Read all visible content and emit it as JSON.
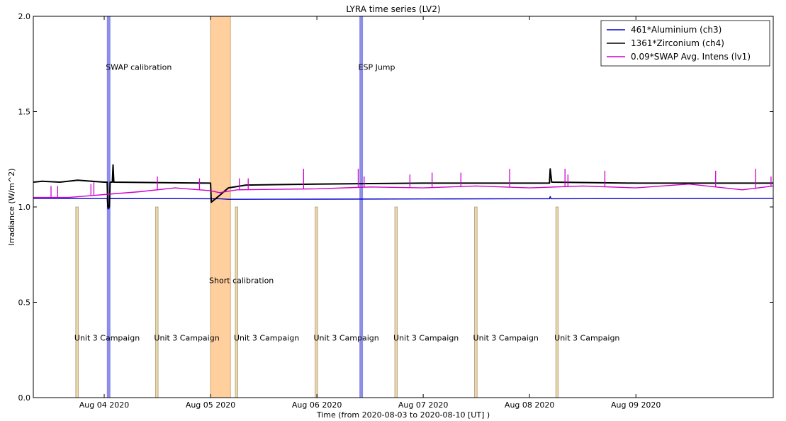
{
  "chart_data": {
    "type": "line",
    "title": "LYRA time series (LV2)",
    "xlabel": "Time (from 2020-08-03 to 2020-08-10 [UT] )",
    "ylabel": "Irradiance (W/m^2)",
    "xlim": [
      "2020-08-03T08:00",
      "2020-08-10T07:00"
    ],
    "ylim": [
      0.0,
      2.0
    ],
    "grid": false,
    "legend_position": "top-right",
    "x_ticks": [
      {
        "value": "2020-08-04T00:00",
        "label": "Aug 04 2020"
      },
      {
        "value": "2020-08-05T00:00",
        "label": "Aug 05 2020"
      },
      {
        "value": "2020-08-06T00:00",
        "label": "Aug 06 2020"
      },
      {
        "value": "2020-08-07T00:00",
        "label": "Aug 07 2020"
      },
      {
        "value": "2020-08-08T00:00",
        "label": "Aug 08 2020"
      },
      {
        "value": "2020-08-09T00:00",
        "label": "Aug 09 2020"
      }
    ],
    "y_ticks": [
      {
        "value": 0.0,
        "label": "0.0"
      },
      {
        "value": 0.5,
        "label": "0.5"
      },
      {
        "value": 1.0,
        "label": "1.0"
      },
      {
        "value": 1.5,
        "label": "1.5"
      },
      {
        "value": 2.0,
        "label": "2.0"
      }
    ],
    "series": [
      {
        "name": "461*Aluminium (ch3)",
        "color": "#0000cc",
        "points": [
          [
            "2020-08-03T08:00",
            1.045
          ],
          [
            "2020-08-04T00:00",
            1.044
          ],
          [
            "2020-08-04T00:40",
            1.044
          ],
          [
            "2020-08-04T00:50",
            0.99
          ],
          [
            "2020-08-04T01:05",
            0.99
          ],
          [
            "2020-08-04T01:10",
            1.044
          ],
          [
            "2020-08-05T00:00",
            1.043
          ],
          [
            "2020-08-05T02:00",
            1.043
          ],
          [
            "2020-08-05T04:00",
            1.04
          ],
          [
            "2020-08-06T00:00",
            1.041
          ],
          [
            "2020-08-07T00:00",
            1.042
          ],
          [
            "2020-08-08T00:00",
            1.043
          ],
          [
            "2020-08-08T04:30",
            1.043
          ],
          [
            "2020-08-08T04:40",
            1.055
          ],
          [
            "2020-08-08T04:50",
            1.043
          ],
          [
            "2020-08-09T00:00",
            1.044
          ],
          [
            "2020-08-10T07:00",
            1.045
          ]
        ]
      },
      {
        "name": "1361*Zirconium (ch4)",
        "color": "#000000",
        "points": [
          [
            "2020-08-03T08:00",
            1.13
          ],
          [
            "2020-08-03T10:00",
            1.135
          ],
          [
            "2020-08-03T14:00",
            1.13
          ],
          [
            "2020-08-03T18:00",
            1.14
          ],
          [
            "2020-08-04T00:00",
            1.13
          ],
          [
            "2020-08-04T00:40",
            1.13
          ],
          [
            "2020-08-04T00:50",
            1.0
          ],
          [
            "2020-08-04T01:10",
            1.0
          ],
          [
            "2020-08-04T01:20",
            1.13
          ],
          [
            "2020-08-04T01:50",
            1.13
          ],
          [
            "2020-08-04T02:00",
            1.22
          ],
          [
            "2020-08-04T02:10",
            1.13
          ],
          [
            "2020-08-05T00:00",
            1.125
          ],
          [
            "2020-08-05T00:10",
            1.025
          ],
          [
            "2020-08-05T02:00",
            1.06
          ],
          [
            "2020-08-05T04:00",
            1.1
          ],
          [
            "2020-08-05T08:00",
            1.115
          ],
          [
            "2020-08-06T00:00",
            1.12
          ],
          [
            "2020-08-07T00:00",
            1.125
          ],
          [
            "2020-08-08T00:00",
            1.125
          ],
          [
            "2020-08-08T04:30",
            1.125
          ],
          [
            "2020-08-08T04:40",
            1.2
          ],
          [
            "2020-08-08T05:00",
            1.13
          ],
          [
            "2020-08-09T00:00",
            1.125
          ],
          [
            "2020-08-10T07:00",
            1.125
          ]
        ]
      },
      {
        "name": "0.09*SWAP Avg. Intens (lv1)",
        "color": "#cc00cc",
        "points": [
          [
            "2020-08-03T08:00",
            1.05
          ],
          [
            "2020-08-03T16:00",
            1.05
          ],
          [
            "2020-08-04T00:00",
            1.065
          ],
          [
            "2020-08-04T08:00",
            1.08
          ],
          [
            "2020-08-04T16:00",
            1.1
          ],
          [
            "2020-08-05T00:00",
            1.085
          ],
          [
            "2020-08-05T02:00",
            1.075
          ],
          [
            "2020-08-05T06:00",
            1.09
          ],
          [
            "2020-08-06T00:00",
            1.095
          ],
          [
            "2020-08-06T12:00",
            1.105
          ],
          [
            "2020-08-07T00:00",
            1.1
          ],
          [
            "2020-08-07T12:00",
            1.11
          ],
          [
            "2020-08-08T00:00",
            1.1
          ],
          [
            "2020-08-08T12:00",
            1.11
          ],
          [
            "2020-08-09T00:00",
            1.1
          ],
          [
            "2020-08-09T12:00",
            1.12
          ],
          [
            "2020-08-10T00:00",
            1.09
          ],
          [
            "2020-08-10T07:00",
            1.11
          ]
        ],
        "spikes": [
          [
            "2020-08-03T12:00",
            1.11
          ],
          [
            "2020-08-03T13:30",
            1.11
          ],
          [
            "2020-08-03T21:00",
            1.12
          ],
          [
            "2020-08-03T21:40",
            1.13
          ],
          [
            "2020-08-04T12:00",
            1.16
          ],
          [
            "2020-08-04T21:30",
            1.15
          ],
          [
            "2020-08-05T06:30",
            1.15
          ],
          [
            "2020-08-05T08:30",
            1.15
          ],
          [
            "2020-08-05T21:00",
            1.2
          ],
          [
            "2020-08-06T09:20",
            1.2
          ],
          [
            "2020-08-06T10:40",
            1.16
          ],
          [
            "2020-08-06T21:00",
            1.17
          ],
          [
            "2020-08-07T02:00",
            1.18
          ],
          [
            "2020-08-07T08:30",
            1.18
          ],
          [
            "2020-08-07T19:30",
            1.2
          ],
          [
            "2020-08-08T08:00",
            1.2
          ],
          [
            "2020-08-08T08:40",
            1.17
          ],
          [
            "2020-08-08T17:00",
            1.19
          ],
          [
            "2020-08-09T18:00",
            1.19
          ],
          [
            "2020-08-10T03:00",
            1.2
          ],
          [
            "2020-08-10T06:30",
            1.16
          ]
        ]
      }
    ],
    "events": [
      {
        "type": "span",
        "start": "2020-08-04T00:40",
        "end": "2020-08-04T01:20",
        "color": "#8888e8",
        "label": "SWAP calibration",
        "label_y": 1.72
      },
      {
        "type": "span",
        "start": "2020-08-05T00:00",
        "end": "2020-08-05T04:30",
        "color": "#ffcc99",
        "label": "Short calibration",
        "label_y": 0.6
      },
      {
        "type": "span",
        "start": "2020-08-06T09:40",
        "end": "2020-08-06T10:20",
        "color": "#8888e8",
        "label": "ESP Jump",
        "label_y": 1.72
      },
      {
        "type": "bar",
        "start": "2020-08-03T17:35",
        "end": "2020-08-03T18:10",
        "height": 1.0,
        "color": "#e8d8b0",
        "label": "Unit 3 Campaign",
        "label_y": 0.3
      },
      {
        "type": "bar",
        "start": "2020-08-04T11:35",
        "end": "2020-08-04T12:10",
        "height": 1.0,
        "color": "#e8d8b0",
        "label": "Unit 3 Campaign",
        "label_y": 0.3
      },
      {
        "type": "bar",
        "start": "2020-08-05T05:35",
        "end": "2020-08-05T06:10",
        "height": 1.0,
        "color": "#e8d8b0",
        "label": "Unit 3 Campaign",
        "label_y": 0.3
      },
      {
        "type": "bar",
        "start": "2020-08-05T23:35",
        "end": "2020-08-06T00:10",
        "height": 1.0,
        "color": "#e8d8b0",
        "label": "Unit 3 Campaign",
        "label_y": 0.3
      },
      {
        "type": "bar",
        "start": "2020-08-06T17:35",
        "end": "2020-08-06T18:10",
        "height": 1.0,
        "color": "#e8d8b0",
        "label": "Unit 3 Campaign",
        "label_y": 0.3
      },
      {
        "type": "bar",
        "start": "2020-08-07T11:35",
        "end": "2020-08-07T12:10",
        "height": 1.0,
        "color": "#e8d8b0",
        "label": "Unit 3 Campaign",
        "label_y": 0.3
      },
      {
        "type": "bar",
        "start": "2020-08-08T05:55",
        "end": "2020-08-08T06:30",
        "height": 1.0,
        "color": "#e8d8b0",
        "label": "Unit 3 Campaign",
        "label_y": 0.3
      }
    ]
  }
}
